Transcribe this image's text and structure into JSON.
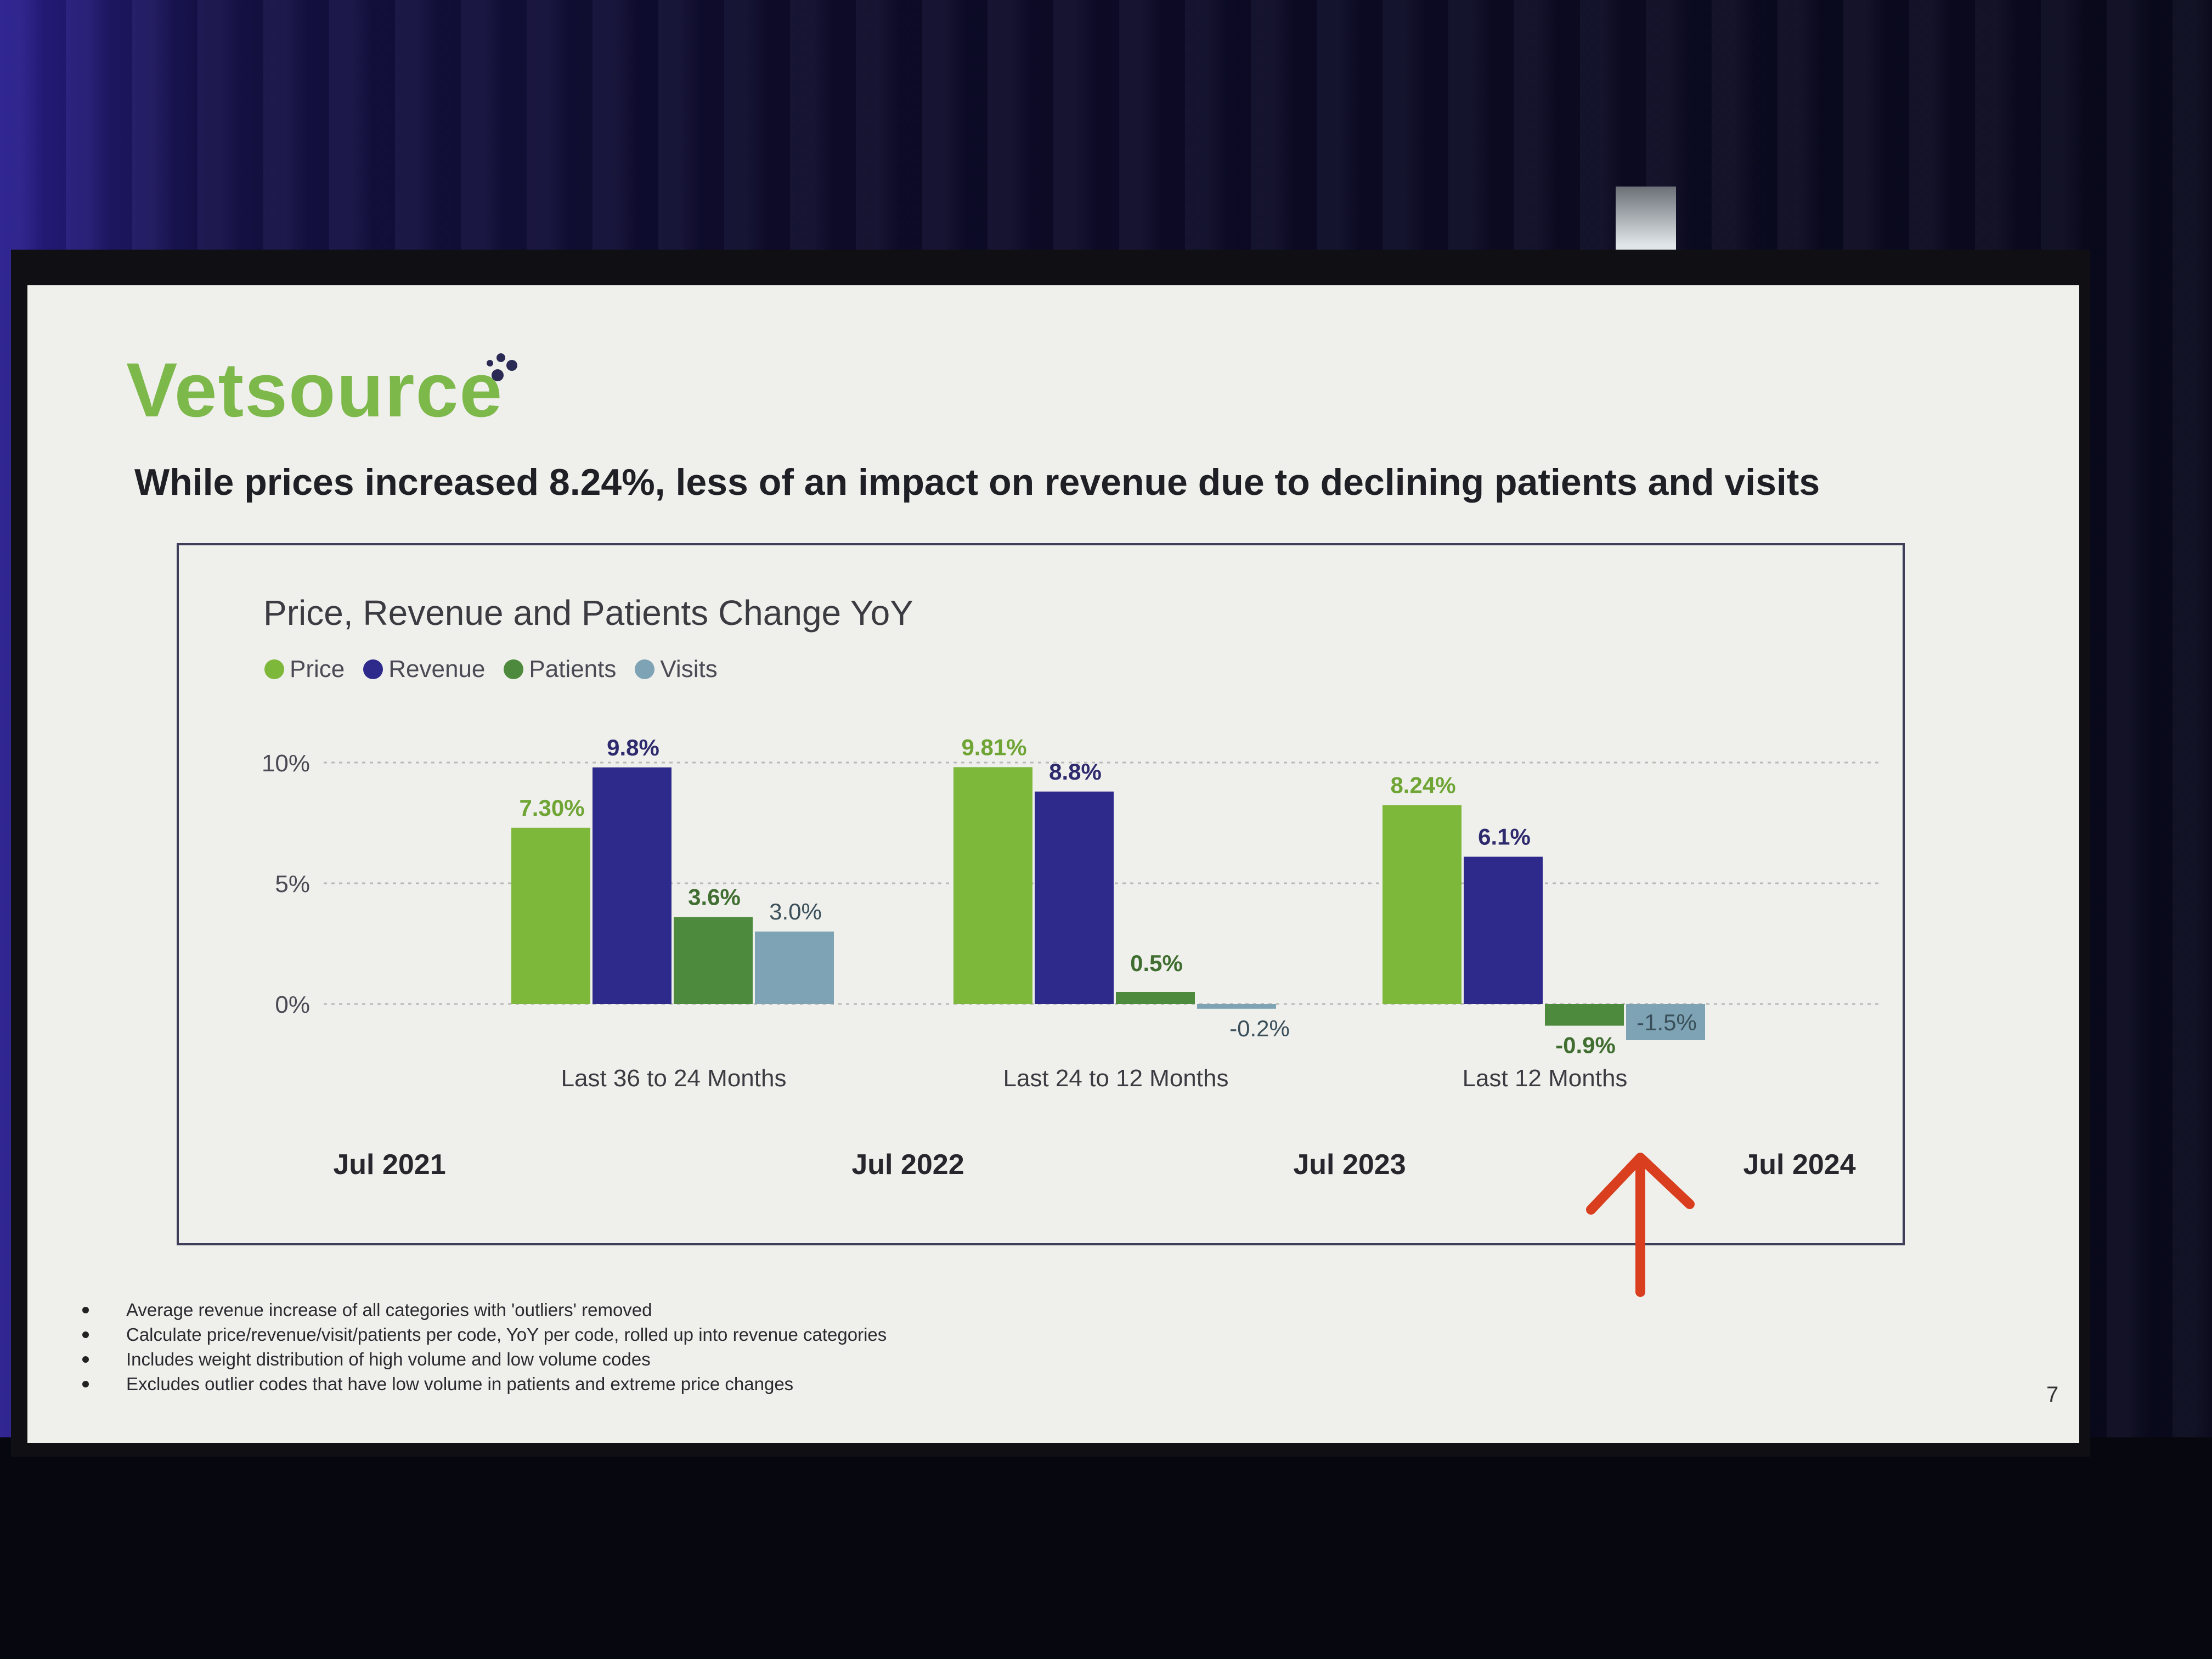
{
  "slide": {
    "logo_text": "Vetsource",
    "headline": "While prices increased 8.24%, less of an impact on revenue due to declining patients and visits",
    "page_number": "7",
    "footnotes": [
      "Average revenue increase of all categories with 'outliers' removed",
      "Calculate price/revenue/visit/patients per code, YoY per code, rolled up into revenue categories",
      "Includes weight distribution of high volume and low volume codes",
      "Excludes outlier codes that have low volume in patients and extreme price changes"
    ],
    "colors": {
      "price": "#7db83a",
      "revenue": "#2e2a8c",
      "patients": "#4e8a3e",
      "visits": "#7ea3b4",
      "arrow": "#d93f1e",
      "logo": "#7db84a"
    }
  },
  "chart_data": {
    "type": "bar",
    "title": "Price, Revenue and Patients Change YoY",
    "categories": [
      "Last 36 to 24 Months",
      "Last 24 to 12 Months",
      "Last 12 Months"
    ],
    "series": [
      {
        "name": "Price",
        "values": [
          7.3,
          9.81,
          8.24
        ],
        "labels": [
          "7.30%",
          "9.81%",
          "8.24%"
        ]
      },
      {
        "name": "Revenue",
        "values": [
          9.8,
          8.8,
          6.1
        ],
        "labels": [
          "9.8%",
          "8.8%",
          "6.1%"
        ]
      },
      {
        "name": "Patients",
        "values": [
          3.6,
          0.5,
          -0.9
        ],
        "labels": [
          "3.6%",
          "0.5%",
          "-0.9%"
        ]
      },
      {
        "name": "Visits",
        "values": [
          3.0,
          -0.2,
          -1.5
        ],
        "labels": [
          "3.0%",
          "-0.2%",
          "-1.5%"
        ]
      }
    ],
    "yticks": [
      "10%",
      "5%",
      "0%"
    ],
    "ytick_values": [
      10,
      5,
      0
    ],
    "ylim": [
      -2,
      11
    ],
    "timeline_labels": [
      "Jul 2021",
      "Jul 2022",
      "Jul 2023",
      "Jul 2024"
    ],
    "legend_position": "top-left",
    "grid": true
  }
}
